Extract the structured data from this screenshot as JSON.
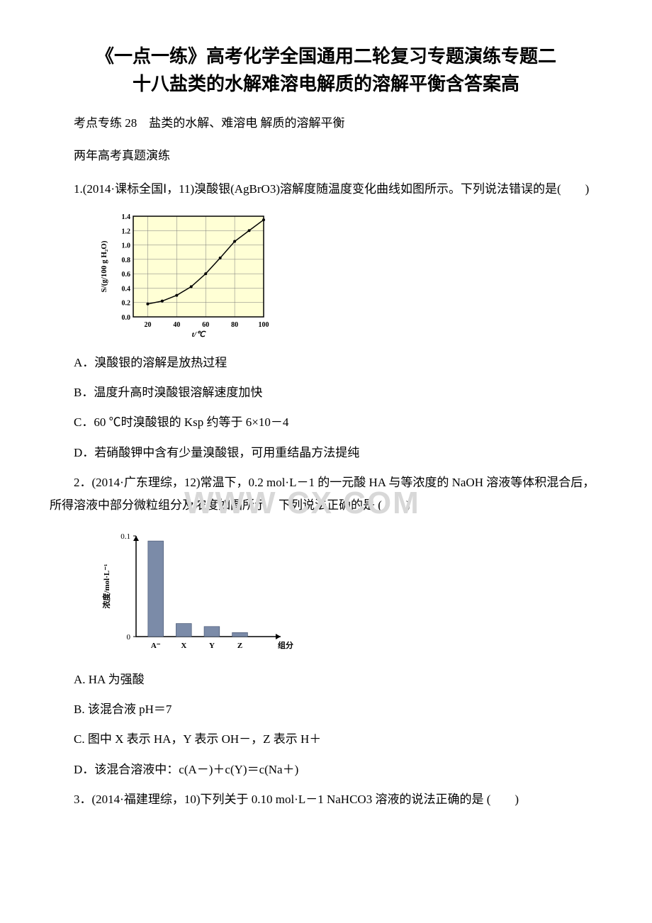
{
  "title_line1": "《一点一练》高考化学全国通用二轮复习专题演练专题二",
  "title_line2": "十八盐类的水解难溶电解质的溶解平衡含答案高",
  "intro1": "考点专练 28　盐类的水解、难溶电 解质的溶解平衡",
  "intro2": "两年高考真题演练",
  "q1_text": "1.(2014·课标全国Ⅰ，11)溴酸银(AgBrO3)溶解度随温度变化曲线如图所示。下列说法错误的是(　　)",
  "q1_optA": "A．溴酸银的溶解是放热过程",
  "q1_optB": "B．温度升高时溴酸银溶解速度加快",
  "q1_optC": "C．60 ℃时溴酸银的 Ksp 约等于 6×10－4",
  "q1_optD": "D．若硝酸钾中含有少量溴酸银，可用重结晶方法提纯",
  "q2_text": "2．(2014·广东理综，12)常温下，0.2 mol·L－1 的一元酸 HA 与等浓度的 NaOH 溶液等体积混合后，所得溶液中部分微粒组分及浓度如图所示，下列说法正确的是 (　　)",
  "q2_optA": "A. HA 为强酸",
  "q2_optB": "B. 该混合液 pH＝7",
  "q2_optC": "C. 图中 X 表示 HA，Y 表示 OH－，Z 表示 H＋",
  "q2_optD": "D．该混合溶液中：c(A－)＋c(Y)＝c(Na＋)",
  "q3_text": "3．(2014·福建理综，10)下列关于 0.10 mol·L－1 NaHCO3 溶液的说法正确的是 (　　)",
  "watermark": "WWW        CX   COM",
  "chart1": {
    "type": "line",
    "xlabel": "t/℃",
    "ylabel": "S/(g/100 g H₂O)",
    "xlim": [
      10,
      100
    ],
    "ylim": [
      0,
      1.4
    ],
    "xticks": [
      20,
      40,
      60,
      80,
      100
    ],
    "yticks": [
      0.0,
      0.2,
      0.4,
      0.6,
      0.8,
      1.0,
      1.2,
      1.4
    ],
    "points_x": [
      20,
      30,
      40,
      50,
      60,
      70,
      80,
      90,
      100
    ],
    "points_y": [
      0.18,
      0.22,
      0.3,
      0.42,
      0.6,
      0.82,
      1.05,
      1.2,
      1.35
    ],
    "line_color": "#000000",
    "grid_color": "#7a7a7a",
    "background_color": "#ffffd5",
    "axis_color": "#000000",
    "label_fontsize": 11,
    "tick_fontsize": 10
  },
  "chart2": {
    "type": "bar",
    "xlabel": "组分",
    "ylabel": "浓度/mol·L⁻¹",
    "categories": [
      "A⁻",
      "X",
      "Y",
      "Z"
    ],
    "values": [
      0.095,
      0.013,
      0.01,
      0.004
    ],
    "ylim": [
      0,
      0.1
    ],
    "yticks": [
      0,
      0.1
    ],
    "bar_color": "#7b8ba8",
    "axis_color": "#000000",
    "label_fontsize": 11,
    "tick_fontsize": 11,
    "bar_width": 0.55
  }
}
